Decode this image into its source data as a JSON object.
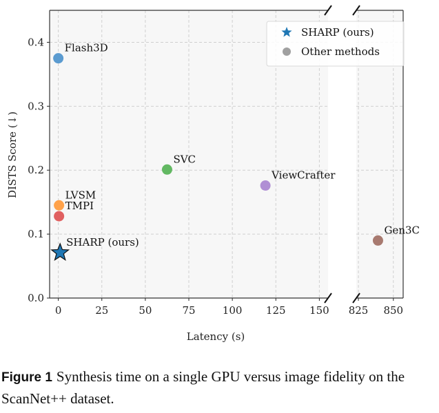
{
  "chart_data": {
    "type": "scatter",
    "xlabel": "Latency (s)",
    "ylabel": "DISTS Score (↓)",
    "ylim": [
      0,
      0.45
    ],
    "yticks": [
      0.0,
      0.1,
      0.2,
      0.3,
      0.4
    ],
    "ytick_labels": [
      "0.0",
      "0.1",
      "0.2",
      "0.3",
      "0.4"
    ],
    "broken_x_axis": true,
    "x_segments": [
      {
        "xlim": [
          -5,
          155
        ],
        "ticks": [
          0,
          25,
          50,
          75,
          100,
          125,
          150
        ],
        "tick_labels": [
          "0",
          "25",
          "50",
          "75",
          "100",
          "125",
          "150"
        ]
      },
      {
        "xlim": [
          823.5,
          857
        ],
        "ticks": [
          825,
          850
        ],
        "tick_labels": [
          "825",
          "850"
        ]
      }
    ],
    "grid": true,
    "legend": {
      "placement": "top-right",
      "entries": [
        {
          "label": "SHARP (ours)",
          "marker": "star",
          "color": "#1f77b4"
        },
        {
          "label": "Other methods",
          "marker": "circle",
          "color": "#a0a0a0"
        }
      ]
    },
    "points": [
      {
        "label": "Flash3D",
        "x": 0,
        "y": 0.375,
        "color": "#5b9bd0",
        "marker": "circle"
      },
      {
        "label": "SVC",
        "x": 62.5,
        "y": 0.201,
        "color": "#62b862",
        "marker": "circle"
      },
      {
        "label": "ViewCrafter",
        "x": 119,
        "y": 0.176,
        "color": "#b08fd4",
        "marker": "circle"
      },
      {
        "label": "LVSM",
        "x": 0.4,
        "y": 0.145,
        "color": "#ffa24a",
        "marker": "circle"
      },
      {
        "label": "TMPI",
        "x": 0.4,
        "y": 0.128,
        "color": "#e06060",
        "marker": "circle"
      },
      {
        "label": "SHARP (ours)",
        "x": 1,
        "y": 0.071,
        "color": "#1f77b4",
        "marker": "star"
      },
      {
        "label": "Gen3C",
        "x": 839,
        "y": 0.09,
        "color": "#a87a70",
        "marker": "circle"
      }
    ]
  },
  "caption": {
    "label": "Figure 1",
    "text": "Synthesis time on a single GPU versus image fidelity on the ScanNet++ dataset."
  }
}
